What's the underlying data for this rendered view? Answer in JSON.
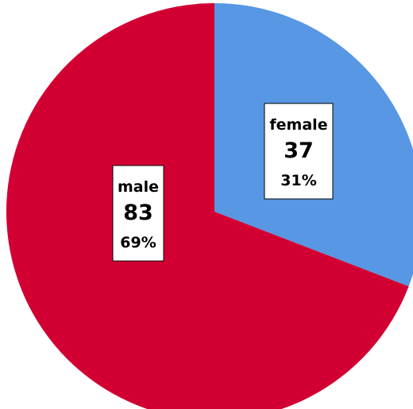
{
  "chart_data": {
    "type": "pie",
    "slices": [
      {
        "label": "female",
        "value": 37,
        "percent": "31%",
        "color": "#5797e3"
      },
      {
        "label": "male",
        "value": 83,
        "percent": "69%",
        "color": "#d20032"
      }
    ],
    "start_angle_deg": 0,
    "direction": "clockwise",
    "legend": "none"
  }
}
